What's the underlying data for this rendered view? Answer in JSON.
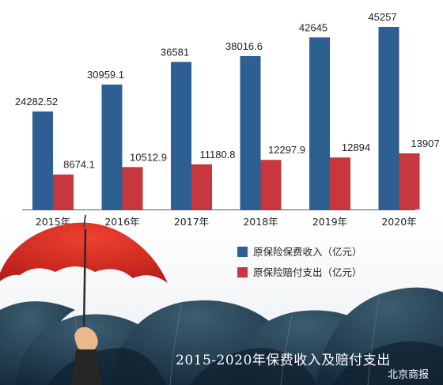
{
  "chart_data": {
    "type": "bar",
    "categories": [
      "2015年",
      "2016年",
      "2017年",
      "2018年",
      "2019年",
      "2020年"
    ],
    "series": [
      {
        "name": "原保险保费收入（亿元）",
        "values": [
          24282.52,
          30959.1,
          36581,
          38016.6,
          42645,
          45257
        ],
        "labels": [
          "24282.52",
          "30959.1",
          "36581",
          "38016.6",
          "42645",
          "45257"
        ],
        "color": "#2e5f92"
      },
      {
        "name": "原保险赔付支出（亿元）",
        "values": [
          8674.1,
          10512.9,
          11180.8,
          12297.9,
          12894,
          13907
        ],
        "labels": [
          "8674.1",
          "10512.9",
          "11180.8",
          "12297.9",
          "12894",
          "13907"
        ],
        "color": "#c8373d"
      }
    ],
    "title": "2015-2020年保费收入及赔付支出",
    "xlabel": "",
    "ylabel": "",
    "ylim": [
      0,
      48000
    ],
    "grid": false,
    "legend": "bottom-right"
  },
  "source": "北京商报",
  "colors": {
    "umbrella_red": "#d62a22",
    "umbrella_dark": "#1f3c4c",
    "baseline": "#555555"
  },
  "icons": [
    "red-umbrella-icon",
    "dark-umbrellas-icon",
    "hand-icon"
  ]
}
